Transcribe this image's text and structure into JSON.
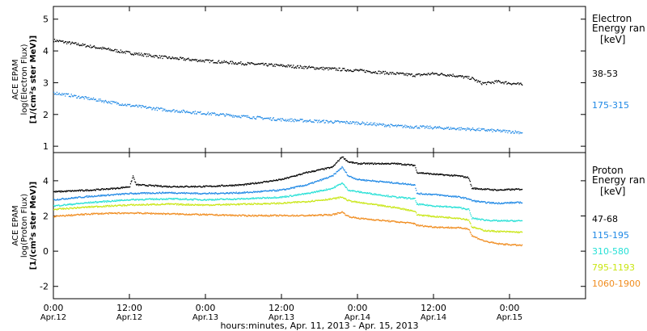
{
  "chart_data": [
    {
      "type": "scatter",
      "panel": "electron",
      "ylabel_lines": [
        "ACE EPAM",
        "log(Electron Flux)",
        "[1/(cm²s ster MeV)]"
      ],
      "ylim": [
        0.8,
        5.4
      ],
      "yticks": [
        1,
        2,
        3,
        4,
        5
      ],
      "xlim_hours": [
        0,
        84
      ],
      "legend_title_lines": [
        "Electron",
        "Energy ran",
        "[keV]"
      ],
      "series": [
        {
          "name": "38-53",
          "color": "#000000",
          "x": [
            0,
            6,
            12,
            18,
            24,
            30,
            36,
            42,
            48,
            54,
            57,
            60,
            63,
            66,
            67.5,
            68.5,
            70,
            72,
            74
          ],
          "y": [
            4.35,
            4.15,
            3.95,
            3.8,
            3.7,
            3.62,
            3.55,
            3.47,
            3.4,
            3.3,
            3.25,
            3.3,
            3.25,
            3.15,
            3.0,
            3.0,
            3.05,
            3.0,
            2.95
          ]
        },
        {
          "name": "175-315",
          "color": "#1e88e5",
          "x": [
            0,
            6,
            12,
            18,
            24,
            30,
            36,
            42,
            48,
            54,
            60,
            66,
            70,
            74
          ],
          "y": [
            2.7,
            2.5,
            2.3,
            2.15,
            2.05,
            1.95,
            1.85,
            1.8,
            1.75,
            1.65,
            1.6,
            1.55,
            1.5,
            1.45
          ]
        }
      ]
    },
    {
      "type": "line",
      "panel": "proton",
      "ylabel_lines": [
        "ACE EPAM",
        "log(Proton Flux)",
        "[1/(cm²s ster MeV)]"
      ],
      "ylim": [
        -2.7,
        5.6
      ],
      "yticks": [
        -2,
        0,
        2,
        4
      ],
      "xlim_hours": [
        0,
        84
      ],
      "legend_title_lines": [
        "Proton",
        "Energy ran",
        "[keV]"
      ],
      "series": [
        {
          "name": "47-68",
          "color": "#000000",
          "x": [
            0,
            6,
            10,
            12,
            12.5,
            13,
            18,
            24,
            30,
            36,
            40,
            44,
            45.5,
            46.5,
            48,
            54,
            57,
            57.3,
            60,
            64,
            65.5,
            66,
            68,
            70,
            74
          ],
          "y": [
            3.4,
            3.5,
            3.6,
            3.7,
            4.3,
            3.8,
            3.7,
            3.7,
            3.8,
            4.1,
            4.5,
            4.8,
            5.4,
            5.1,
            5.0,
            5.0,
            4.9,
            4.5,
            4.4,
            4.3,
            4.2,
            3.6,
            3.55,
            3.5,
            3.55
          ]
        },
        {
          "name": "115-195",
          "color": "#1e88e5",
          "x": [
            0,
            6,
            12,
            18,
            24,
            30,
            36,
            40,
            44,
            45.5,
            46.5,
            48,
            54,
            57,
            57.3,
            60,
            64,
            65.5,
            66,
            68,
            70,
            74
          ],
          "y": [
            2.95,
            3.15,
            3.3,
            3.35,
            3.3,
            3.35,
            3.5,
            3.8,
            4.3,
            4.8,
            4.3,
            4.1,
            3.9,
            3.8,
            3.3,
            3.25,
            3.1,
            3.0,
            2.9,
            2.8,
            2.75,
            2.8
          ]
        },
        {
          "name": "310-580",
          "color": "#26e0d6",
          "x": [
            0,
            6,
            12,
            18,
            24,
            30,
            36,
            40,
            44,
            45.5,
            46.5,
            48,
            54,
            57,
            57.3,
            60,
            64,
            65.5,
            66,
            68,
            70,
            74
          ],
          "y": [
            2.6,
            2.8,
            2.95,
            3.0,
            2.95,
            3.0,
            3.1,
            3.3,
            3.6,
            3.9,
            3.5,
            3.4,
            3.1,
            3.0,
            2.7,
            2.6,
            2.5,
            2.4,
            1.9,
            1.8,
            1.75,
            1.75
          ]
        },
        {
          "name": "795-1193",
          "color": "#c9e614",
          "x": [
            0,
            6,
            12,
            18,
            24,
            30,
            36,
            40,
            44,
            45.5,
            46.5,
            48,
            54,
            57,
            57.3,
            60,
            64,
            65.5,
            66,
            68,
            70,
            74
          ],
          "y": [
            2.4,
            2.55,
            2.65,
            2.7,
            2.65,
            2.7,
            2.75,
            2.85,
            3.0,
            3.1,
            2.9,
            2.8,
            2.5,
            2.3,
            2.1,
            2.0,
            1.9,
            1.8,
            1.4,
            1.2,
            1.15,
            1.1
          ]
        },
        {
          "name": "1060-1900",
          "color": "#f08c1e",
          "x": [
            0,
            6,
            12,
            18,
            24,
            30,
            36,
            40,
            44,
            45.5,
            46.5,
            48,
            54,
            57,
            57.3,
            60,
            64,
            65.5,
            66,
            68,
            70,
            74
          ],
          "y": [
            2.0,
            2.15,
            2.2,
            2.15,
            2.1,
            2.05,
            2.05,
            2.05,
            2.1,
            2.25,
            2.0,
            1.9,
            1.7,
            1.6,
            1.5,
            1.4,
            1.35,
            1.3,
            0.9,
            0.6,
            0.45,
            0.35
          ]
        }
      ]
    }
  ],
  "x_axis": {
    "tick_labels": [
      "0:00",
      "12:00",
      "0:00",
      "12:00",
      "0:00",
      "12:00",
      "0:00"
    ],
    "tick_hours": [
      0,
      12,
      24,
      36,
      48,
      60,
      72
    ],
    "date_labels": [
      "Apr.12",
      "Apr.12",
      "Apr.13",
      "Apr.13",
      "Apr.14",
      "Apr.14",
      "Apr.15"
    ],
    "title": "hours:minutes, Apr. 11, 2013 - Apr. 15, 2013"
  }
}
